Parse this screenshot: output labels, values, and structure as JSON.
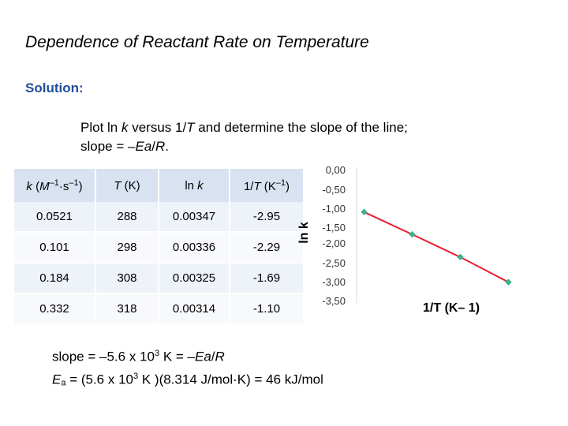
{
  "title": "Dependence of Reactant Rate on Temperature",
  "solution_label": "Solution:",
  "intro": {
    "line1_a": "Plot ln ",
    "line1_k": "k",
    "line1_b": " versus 1/",
    "line1_T": "T",
    "line1_c": " and determine the slope of the line;",
    "line2_a": "slope = –",
    "line2_ea": "Ea",
    "line2_b": "/",
    "line2_R": "R",
    "line2_c": "."
  },
  "table": {
    "headers": [
      {
        "parts": [
          "k",
          " (",
          "M",
          "–1",
          "·s",
          "–1",
          ")"
        ]
      },
      {
        "parts": [
          "T",
          " (K)"
        ]
      },
      {
        "parts": [
          "ln ",
          "k"
        ]
      },
      {
        "parts": [
          "1/",
          "T",
          " (K",
          "–1",
          ")"
        ]
      }
    ],
    "rows": [
      [
        "0.0521",
        "288",
        "0.00347",
        "-2.95"
      ],
      [
        "0.101",
        "298",
        "0.00336",
        "-2.29"
      ],
      [
        "0.184",
        "308",
        "0.00325",
        "-1.69"
      ],
      [
        "0.332",
        "318",
        "0.00314",
        "-1.10"
      ]
    ]
  },
  "chart_data": {
    "type": "line",
    "title": "",
    "xlabel": "1/T (K– 1)",
    "ylabel": "ln k",
    "yticks": [
      "0,00",
      "-0,50",
      "-1,00",
      "-1,50",
      "-2,00",
      "-2,50",
      "-3,00",
      "-3,50"
    ],
    "ylim": [
      -3.5,
      0
    ],
    "xlim": [
      0.00313,
      0.00348
    ],
    "points": [
      {
        "x": 0.00314,
        "y": -1.1
      },
      {
        "x": 0.00325,
        "y": -1.69
      },
      {
        "x": 0.00336,
        "y": -2.29
      },
      {
        "x": 0.00347,
        "y": -2.95
      }
    ],
    "grid": false,
    "marker_color": "#3cb389",
    "line_color": "#e8202a"
  },
  "result": {
    "line1_a": "slope = –5.6 x 10",
    "line1_exp": "3",
    "line1_b": " K = –",
    "line1_ea": "Ea",
    "line1_c": "/",
    "line1_R": "R",
    "line2_E": "E",
    "line2_sub": "a",
    "line2_a": " = (5.6 x 10",
    "line2_exp": "3",
    "line2_b": " K )(8.314 J/mol·K) = 46 kJ/mol"
  }
}
